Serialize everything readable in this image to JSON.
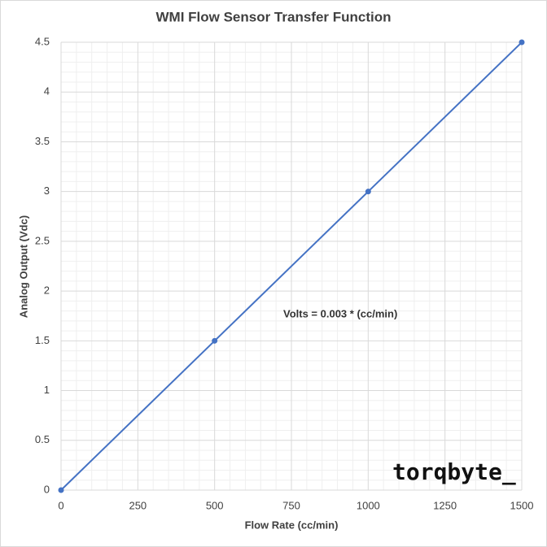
{
  "chart_data": {
    "type": "line",
    "title": "WMI Flow Sensor Transfer Function",
    "x_label": "Flow Rate (cc/min)",
    "y_label": "Analog Output (Vdc)",
    "annotation": "Volts = 0.003  * (cc/min)",
    "logo": "torqbyte_",
    "x": [
      0,
      500,
      1000,
      1500
    ],
    "series": [
      {
        "name": "Analog Output",
        "color": "#4472c4",
        "values": [
          0,
          1.5,
          3,
          4.5
        ]
      }
    ],
    "xlim": [
      0,
      1500
    ],
    "xticks": [
      0,
      250,
      500,
      750,
      1000,
      1250,
      1500
    ],
    "ylim": [
      0,
      4.5
    ],
    "yticks": [
      0,
      0.5,
      1,
      1.5,
      2,
      2.5,
      3,
      3.5,
      4,
      4.5
    ],
    "grid": true,
    "minor_grid": true,
    "markers": true
  }
}
